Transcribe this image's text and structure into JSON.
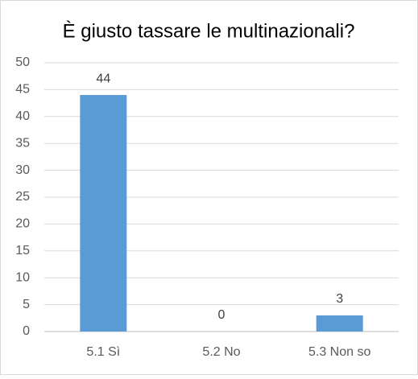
{
  "chart_data": {
    "type": "bar",
    "title": "È giusto tassare le multinazionali?",
    "categories": [
      "5.1 Sì",
      "5.2 No",
      "5.3 Non so"
    ],
    "values": [
      44,
      0,
      3
    ],
    "color": "#5b9bd5",
    "ylim": [
      0,
      50
    ],
    "yticks": [
      0,
      5,
      10,
      15,
      20,
      25,
      30,
      35,
      40,
      45,
      50
    ],
    "grid": true,
    "data_labels": true
  }
}
